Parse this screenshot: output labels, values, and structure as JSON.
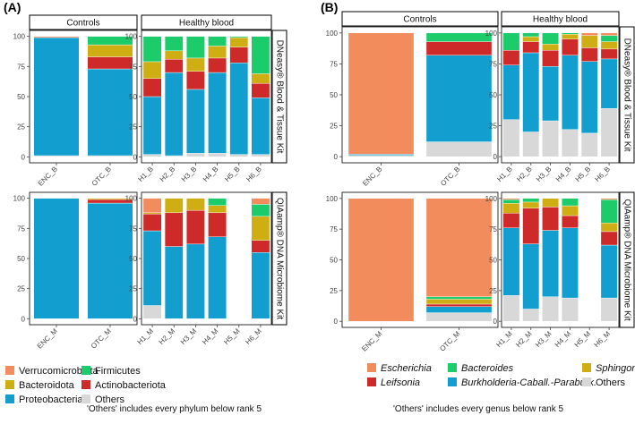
{
  "chart_data": [
    {
      "type": "stacked-bar",
      "panel": "(A)",
      "stack_order": [
        "Others",
        "Proteobacteria",
        "Actinobacteriota",
        "Bacteroidota",
        "Firmicutes",
        "Verrucomicrobiota"
      ],
      "colors": {
        "Verrucomicrobiota": "#f28c5c",
        "Firmicutes": "#1ccc6a",
        "Bacteroidota": "#cfae14",
        "Actinobacteriota": "#cf2a2a",
        "Proteobacteria": "#129fcf",
        "Others": "#d8d8d8"
      },
      "ylim": [
        0,
        100
      ],
      "yticks": [
        "0",
        "25",
        "50",
        "75",
        "100"
      ],
      "column_strips": [
        "Controls",
        "Healthy blood"
      ],
      "row_strips": [
        "DNeasy® Blood & Tissue Kit",
        "QIAamp® DNA Microbiome Kit"
      ],
      "rows": [
        {
          "groups": [
            {
              "categories": [
                "ENC_B",
                "OTC_B"
              ],
              "values": [
                [
                  1,
                  98,
                  0,
                  0,
                  0,
                  1
                ],
                [
                  1,
                  72,
                  10,
                  10,
                  7,
                  0
                ]
              ]
            },
            {
              "categories": [
                "H1_B",
                "H2_B",
                "H3_B",
                "H4_B",
                "H5_B",
                "H6_B"
              ],
              "values": [
                [
                  2,
                  48,
                  15,
                  14,
                  21,
                  0
                ],
                [
                  1,
                  69,
                  11,
                  7,
                  12,
                  0
                ],
                [
                  3,
                  53,
                  15,
                  11,
                  18,
                  0
                ],
                [
                  3,
                  67,
                  12,
                  10,
                  8,
                  0
                ],
                [
                  2,
                  76,
                  13,
                  8,
                  1,
                  0
                ],
                [
                  2,
                  47,
                  12,
                  8,
                  31,
                  0
                ]
              ]
            }
          ]
        },
        {
          "groups": [
            {
              "categories": [
                "ENC_M",
                "OTC_M"
              ],
              "values": [
                [
                  0,
                  100,
                  0,
                  0,
                  0,
                  0
                ],
                [
                  0,
                  96,
                  3,
                  1,
                  0,
                  0
                ]
              ]
            },
            {
              "categories": [
                "H1_M",
                "H2_M",
                "H3_M",
                "H4_M",
                "H5_M",
                "H6_M"
              ],
              "values": [
                [
                  11,
                  62,
                  14,
                  1,
                  0,
                  12
                ],
                [
                  0,
                  60,
                  28,
                  12,
                  0,
                  0
                ],
                [
                  0,
                  62,
                  28,
                  10,
                  0,
                  0
                ],
                [
                  0,
                  68,
                  20,
                  6,
                  6,
                  0
                ],
                [
                  0,
                  0,
                  0,
                  0,
                  0,
                  0
                ],
                [
                  0,
                  55,
                  10,
                  20,
                  10,
                  5
                ]
              ]
            }
          ]
        }
      ],
      "legend": [
        [
          "Verrucomicrobiota",
          "Bacteroidota",
          "Proteobacteria"
        ],
        [
          "Firmicutes",
          "Actinobacteriota",
          "Others"
        ]
      ],
      "note": "'Others' includes every phylum below rank 5"
    },
    {
      "type": "stacked-bar",
      "panel": "(B)",
      "stack_order": [
        "Others",
        "Burkholderia-Caball.-Paraburk.",
        "Leifsonia",
        "Sphingomonas",
        "Bacteroides",
        "Escherichia"
      ],
      "colors": {
        "Escherichia": "#f28c5c",
        "Bacteroides": "#1ccc6a",
        "Sphingomonas": "#cfae14",
        "Leifsonia": "#cf2a2a",
        "Burkholderia-Caball.-Paraburk.": "#129fcf",
        "Others": "#d8d8d8"
      },
      "ylim": [
        0,
        100
      ],
      "yticks": [
        "0",
        "25",
        "50",
        "75",
        "100"
      ],
      "column_strips": [
        "Controls",
        "Healthy blood"
      ],
      "row_strips": [
        "DNeasy® Blood & Tissue Kit",
        "QIAamp® DNA Microbiome Kit"
      ],
      "rows": [
        {
          "groups": [
            {
              "categories": [
                "ENC_B",
                "OTC_B"
              ],
              "values": [
                [
                  1,
                  1,
                  0,
                  0,
                  0,
                  98
                ],
                [
                  12,
                  70,
                  11,
                  0,
                  7,
                  0
                ]
              ]
            },
            {
              "categories": [
                "H1_B",
                "H2_B",
                "H3_B",
                "H4_B",
                "H5_B",
                "H6_B"
              ],
              "values": [
                [
                  30,
                  44,
                  12,
                  0,
                  14,
                  0
                ],
                [
                  20,
                  64,
                  9,
                  4,
                  3,
                  0
                ],
                [
                  29,
                  44,
                  13,
                  5,
                  9,
                  0
                ],
                [
                  22,
                  60,
                  13,
                  4,
                  1,
                  0
                ],
                [
                  19,
                  58,
                  11,
                  10,
                  0,
                  2
                ],
                [
                  39,
                  40,
                  8,
                  6,
                  5,
                  2
                ]
              ]
            }
          ]
        },
        {
          "groups": [
            {
              "categories": [
                "ENC_M",
                "OTC_M"
              ],
              "values": [
                [
                  0,
                  0,
                  0,
                  0,
                  0,
                  100
                ],
                [
                  7,
                  5,
                  2,
                  4,
                  2,
                  80
                ]
              ]
            },
            {
              "categories": [
                "H1_M",
                "H2_M",
                "H3_M",
                "H4_M",
                "H5_M",
                "H6_M"
              ],
              "values": [
                [
                  21,
                  55,
                  12,
                  8,
                  3,
                  1
                ],
                [
                  10,
                  53,
                  29,
                  5,
                  3,
                  0
                ],
                [
                  20,
                  54,
                  19,
                  7,
                  0,
                  0
                ],
                [
                  19,
                  57,
                  10,
                  8,
                  6,
                  0
                ],
                [
                  0,
                  0,
                  0,
                  0,
                  0,
                  0
                ],
                [
                  19,
                  43,
                  11,
                  7,
                  19,
                  1
                ]
              ]
            }
          ]
        }
      ],
      "legend": [
        [
          "Escherichia",
          "Leifsonia"
        ],
        [
          "Bacteroides",
          "Burkholderia-Caball.-Paraburk."
        ],
        [
          "Sphingomonas",
          "Others"
        ]
      ],
      "note": "'Others' includes every genus below rank 5"
    }
  ]
}
